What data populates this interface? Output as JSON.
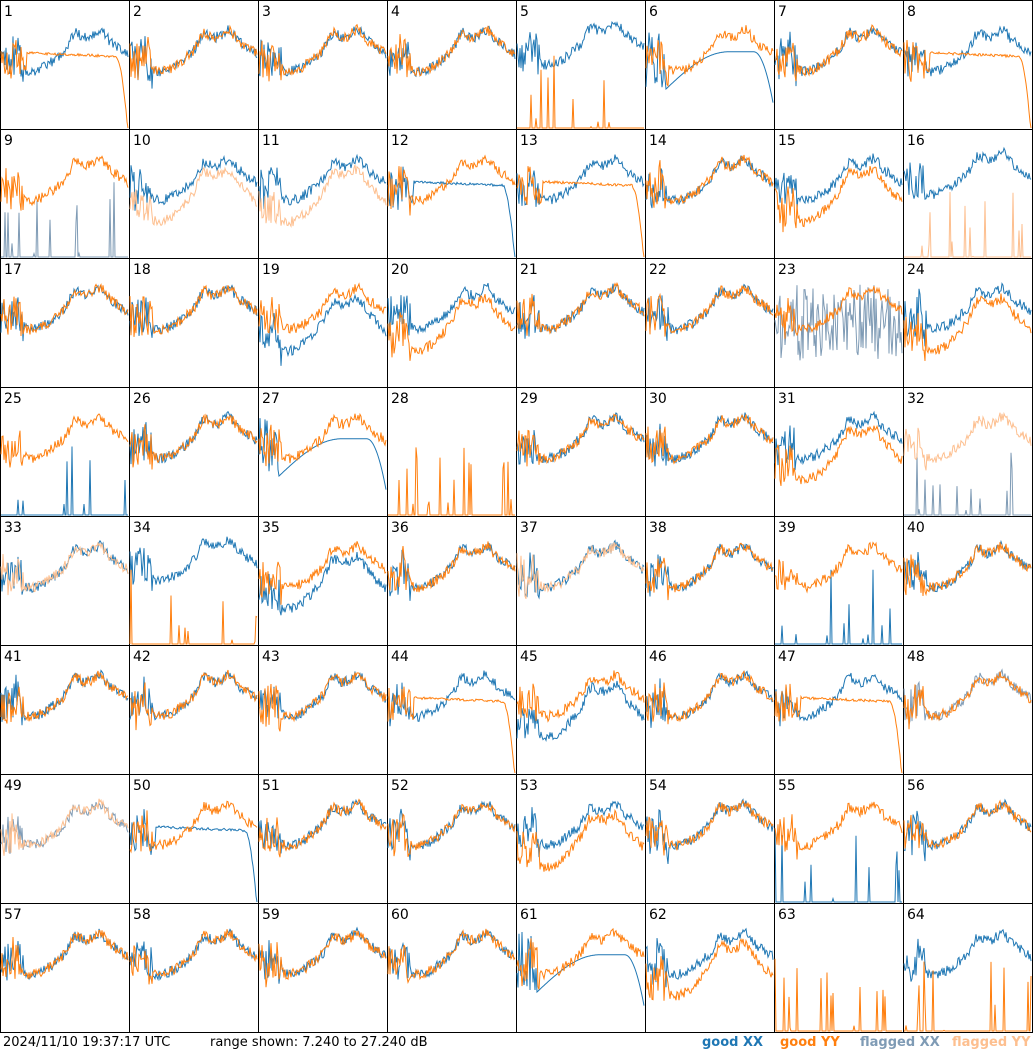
{
  "chart_data": {
    "type": "line",
    "timestamp": "2024/11/10 19:37:17 UTC",
    "range_label": "range shown: 7.240 to 27.240 dB",
    "ylim": [
      7.24,
      27.24
    ],
    "legend": {
      "good_xx": "good XX",
      "good_yy": "good YY",
      "flagged_xx": "flagged XX",
      "flagged_yy": "flagged YY"
    },
    "colors": {
      "good_xx": "#1f77b4",
      "good_yy": "#ff7f0e",
      "flagged_xx": "#7f9bb5",
      "flagged_yy": "#fdbf8f"
    },
    "panels": [
      {
        "label": "1",
        "xx": "normal",
        "yy": "rolloff"
      },
      {
        "label": "2",
        "xx": "normal",
        "yy": "normal"
      },
      {
        "label": "3",
        "xx": "normal",
        "yy": "normal"
      },
      {
        "label": "4",
        "xx": "normal",
        "yy": "normal"
      },
      {
        "label": "5",
        "xx": "high",
        "yy": "spikes"
      },
      {
        "label": "6",
        "xx": "dip",
        "yy": "normal"
      },
      {
        "label": "7",
        "xx": "normal",
        "yy": "normal"
      },
      {
        "label": "8",
        "xx": "normal",
        "yy": "rolloff"
      },
      {
        "label": "9",
        "xx": "flag-spikes",
        "yy": "normal"
      },
      {
        "label": "10",
        "xx": "normal",
        "yy": "flag-low"
      },
      {
        "label": "11",
        "xx": "normal",
        "yy": "flag-low"
      },
      {
        "label": "12",
        "xx": "rolloff",
        "yy": "normal"
      },
      {
        "label": "13",
        "xx": "normal",
        "yy": "rolloff"
      },
      {
        "label": "14",
        "xx": "normal",
        "yy": "normal"
      },
      {
        "label": "15",
        "xx": "normal",
        "yy": "low"
      },
      {
        "label": "16",
        "xx": "high",
        "yy": "flag-spikes"
      },
      {
        "label": "17",
        "xx": "normal",
        "yy": "normal"
      },
      {
        "label": "18",
        "xx": "normal",
        "yy": "normal"
      },
      {
        "label": "19",
        "xx": "low",
        "yy": "normal"
      },
      {
        "label": "20",
        "xx": "normal",
        "yy": "low"
      },
      {
        "label": "21",
        "xx": "normal",
        "yy": "normal"
      },
      {
        "label": "22",
        "xx": "normal",
        "yy": "normal"
      },
      {
        "label": "23",
        "xx": "flag-noise",
        "yy": "normal"
      },
      {
        "label": "24",
        "xx": "normal",
        "yy": "low"
      },
      {
        "label": "25",
        "xx": "spikes",
        "yy": "normal"
      },
      {
        "label": "26",
        "xx": "normal",
        "yy": "normal"
      },
      {
        "label": "27",
        "xx": "dip",
        "yy": "normal"
      },
      {
        "label": "28",
        "xx": "none",
        "yy": "spikes"
      },
      {
        "label": "29",
        "xx": "normal",
        "yy": "normal"
      },
      {
        "label": "30",
        "xx": "normal",
        "yy": "normal"
      },
      {
        "label": "31",
        "xx": "normal",
        "yy": "low"
      },
      {
        "label": "32",
        "xx": "flag-spikes",
        "yy": "flag-normal"
      },
      {
        "label": "33",
        "xx": "normal",
        "yy": "flag-normal"
      },
      {
        "label": "34",
        "xx": "high",
        "yy": "spikes"
      },
      {
        "label": "35",
        "xx": "low",
        "yy": "normal"
      },
      {
        "label": "36",
        "xx": "normal",
        "yy": "normal"
      },
      {
        "label": "37",
        "xx": "normal",
        "yy": "flag-normal"
      },
      {
        "label": "38",
        "xx": "normal",
        "yy": "normal"
      },
      {
        "label": "39",
        "xx": "spikes",
        "yy": "normal"
      },
      {
        "label": "40",
        "xx": "normal",
        "yy": "normal"
      },
      {
        "label": "41",
        "xx": "normal",
        "yy": "normal"
      },
      {
        "label": "42",
        "xx": "normal",
        "yy": "normal"
      },
      {
        "label": "43",
        "xx": "normal",
        "yy": "normal"
      },
      {
        "label": "44",
        "xx": "normal",
        "yy": "rolloff"
      },
      {
        "label": "45",
        "xx": "low",
        "yy": "normal"
      },
      {
        "label": "46",
        "xx": "normal",
        "yy": "normal"
      },
      {
        "label": "47",
        "xx": "normal",
        "yy": "rolloff"
      },
      {
        "label": "48",
        "xx": "flag-normal",
        "yy": "normal"
      },
      {
        "label": "49",
        "xx": "flag-normal",
        "yy": "flag-normal"
      },
      {
        "label": "50",
        "xx": "rolloff",
        "yy": "normal"
      },
      {
        "label": "51",
        "xx": "normal",
        "yy": "normal"
      },
      {
        "label": "52",
        "xx": "normal",
        "yy": "normal"
      },
      {
        "label": "53",
        "xx": "normal",
        "yy": "low"
      },
      {
        "label": "54",
        "xx": "normal",
        "yy": "normal"
      },
      {
        "label": "55",
        "xx": "spikes",
        "yy": "normal"
      },
      {
        "label": "56",
        "xx": "normal",
        "yy": "normal"
      },
      {
        "label": "57",
        "xx": "normal",
        "yy": "normal"
      },
      {
        "label": "58",
        "xx": "normal",
        "yy": "normal"
      },
      {
        "label": "59",
        "xx": "normal",
        "yy": "normal"
      },
      {
        "label": "60",
        "xx": "normal",
        "yy": "normal"
      },
      {
        "label": "61",
        "xx": "dip",
        "yy": "normal"
      },
      {
        "label": "62",
        "xx": "normal",
        "yy": "low"
      },
      {
        "label": "63",
        "xx": "none",
        "yy": "spikes"
      },
      {
        "label": "64",
        "xx": "normal",
        "yy": "spikes"
      }
    ]
  }
}
